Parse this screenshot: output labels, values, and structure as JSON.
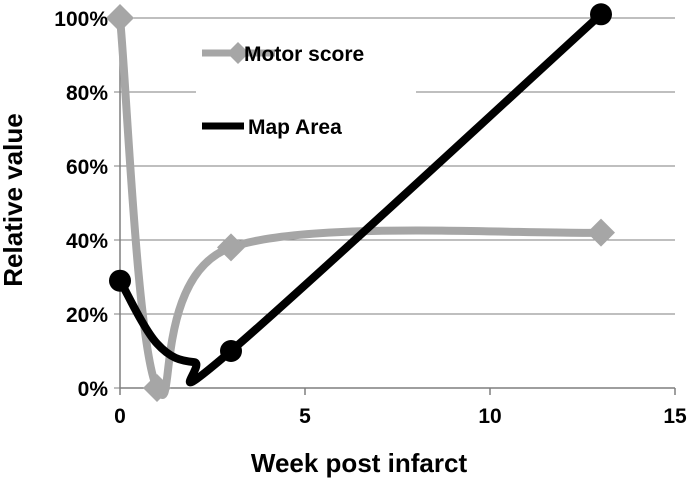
{
  "chart_data": {
    "type": "line",
    "xlabel": "Week post infarct",
    "ylabel": "Relative value",
    "xlim": [
      0,
      15
    ],
    "ylim": [
      0,
      100
    ],
    "x_ticks": [
      "0",
      "5",
      "10",
      "15"
    ],
    "y_ticks": [
      "0%",
      "20%",
      "40%",
      "60%",
      "80%",
      "100%"
    ],
    "grid": "horizontal",
    "smooth": true,
    "legend": {
      "placement": "top-left-inside"
    },
    "series": [
      {
        "name": "Motor score",
        "marker": "diamond",
        "color": "#a6a6a6",
        "x": [
          0,
          1,
          3,
          13
        ],
        "y": [
          100,
          0,
          38,
          42
        ]
      },
      {
        "name": "Map Area",
        "marker": "circle",
        "color": "#000000",
        "x": [
          0,
          1,
          3,
          13
        ],
        "y": [
          29,
          null,
          10,
          101
        ]
      }
    ]
  }
}
